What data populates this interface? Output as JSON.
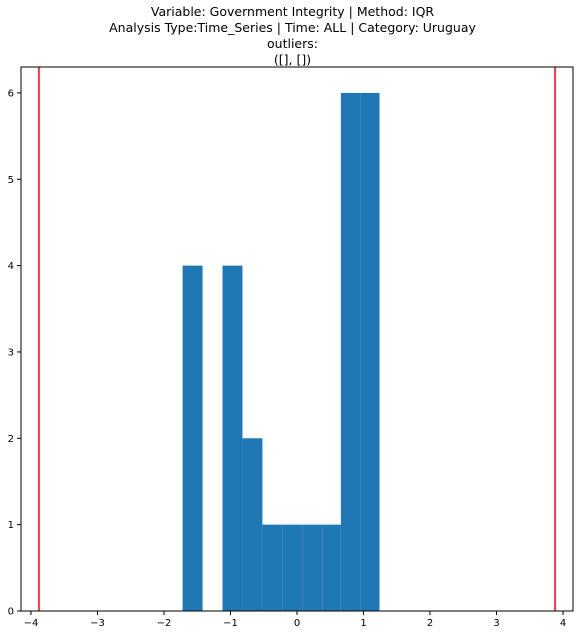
{
  "chart_data": {
    "type": "bar",
    "title_lines": [
      "Variable: Government Integrity | Method: IQR",
      "Analysis Type:Time_Series | Time: ALL | Category: Uruguay",
      "outliers:",
      "([], [])"
    ],
    "xlabel": "",
    "ylabel": "",
    "xlim": [
      -4.15,
      4.15
    ],
    "ylim": [
      0,
      6.3
    ],
    "x_ticks": [
      -4,
      -3,
      -2,
      -1,
      0,
      1,
      2,
      3,
      4
    ],
    "x_tick_labels": [
      "−4",
      "−3",
      "−2",
      "−1",
      "0",
      "1",
      "2",
      "3",
      "4"
    ],
    "y_ticks": [
      0,
      1,
      2,
      3,
      4,
      5,
      6
    ],
    "y_tick_labels": [
      "0",
      "1",
      "2",
      "3",
      "4",
      "5",
      "6"
    ],
    "bar_color": "#1f77b4",
    "threshold_color": "#ff0000",
    "bins": [
      {
        "x0": -1.72,
        "x1": -1.42,
        "count": 4
      },
      {
        "x0": -1.42,
        "x1": -1.12,
        "count": 0
      },
      {
        "x0": -1.12,
        "x1": -0.82,
        "count": 4
      },
      {
        "x0": -0.82,
        "x1": -0.52,
        "count": 2
      },
      {
        "x0": -0.52,
        "x1": -0.22,
        "count": 1
      },
      {
        "x0": -0.22,
        "x1": 0.08,
        "count": 1
      },
      {
        "x0": 0.08,
        "x1": 0.38,
        "count": 1
      },
      {
        "x0": 0.38,
        "x1": 0.66,
        "count": 1
      },
      {
        "x0": 0.66,
        "x1": 0.96,
        "count": 6
      },
      {
        "x0": 0.96,
        "x1": 1.24,
        "count": 6
      }
    ],
    "thresholds": [
      -3.88,
      3.88
    ],
    "grid": false,
    "legend": "none"
  }
}
